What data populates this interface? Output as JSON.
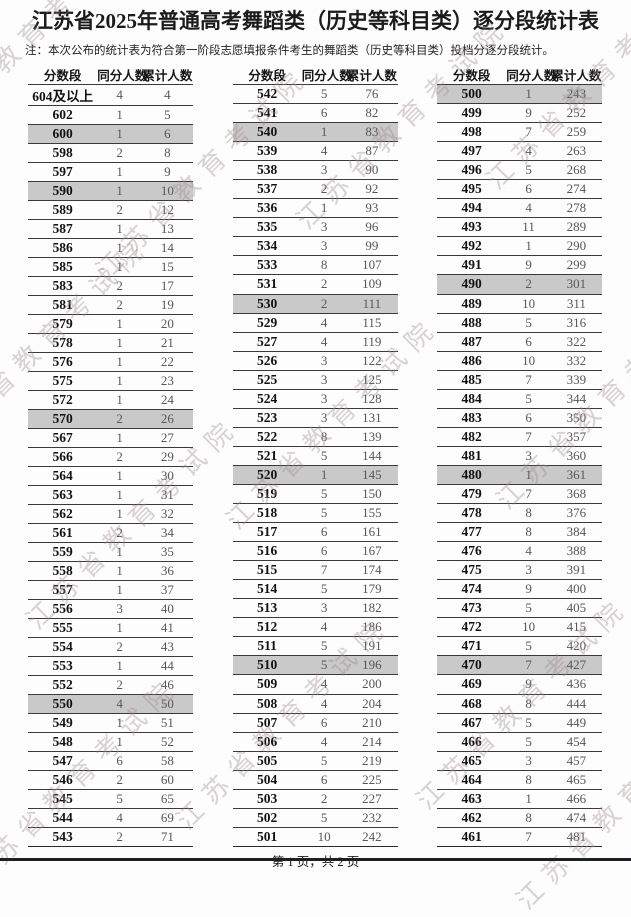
{
  "title": "江苏省2025年普通高考舞蹈类（历史等科目类）逐分段统计表",
  "note": "注：本次公布的统计表为符合第一阶段志愿填报条件考生的舞蹈类（历史等科目类）投档分逐分段统计。",
  "footer": "第 1 页，共 2 页",
  "watermark": {
    "text": "江苏省教育考试院",
    "color": "#9e8a8a"
  },
  "shaded_row_color": "#c9c9c9",
  "columns": [
    "分数段",
    "同分人数",
    "累计人数"
  ],
  "row_format": [
    "score",
    "same_score_count",
    "cumulative_count",
    "shaded"
  ],
  "tables": [
    {
      "rows": [
        [
          "604及以上",
          4,
          4,
          0
        ],
        [
          "602",
          1,
          5,
          0
        ],
        [
          "600",
          1,
          6,
          1
        ],
        [
          "598",
          2,
          8,
          0
        ],
        [
          "597",
          1,
          9,
          0
        ],
        [
          "590",
          1,
          10,
          1
        ],
        [
          "589",
          2,
          12,
          0
        ],
        [
          "587",
          1,
          13,
          0
        ],
        [
          "586",
          1,
          14,
          0
        ],
        [
          "585",
          1,
          15,
          0
        ],
        [
          "583",
          2,
          17,
          0
        ],
        [
          "581",
          2,
          19,
          0
        ],
        [
          "579",
          1,
          20,
          0
        ],
        [
          "578",
          1,
          21,
          0
        ],
        [
          "576",
          1,
          22,
          0
        ],
        [
          "575",
          1,
          23,
          0
        ],
        [
          "572",
          1,
          24,
          0
        ],
        [
          "570",
          2,
          26,
          1
        ],
        [
          "567",
          1,
          27,
          0
        ],
        [
          "566",
          2,
          29,
          0
        ],
        [
          "564",
          1,
          30,
          0
        ],
        [
          "563",
          1,
          31,
          0
        ],
        [
          "562",
          1,
          32,
          0
        ],
        [
          "561",
          2,
          34,
          0
        ],
        [
          "559",
          1,
          35,
          0
        ],
        [
          "558",
          1,
          36,
          0
        ],
        [
          "557",
          1,
          37,
          0
        ],
        [
          "556",
          3,
          40,
          0
        ],
        [
          "555",
          1,
          41,
          0
        ],
        [
          "554",
          2,
          43,
          0
        ],
        [
          "553",
          1,
          44,
          0
        ],
        [
          "552",
          2,
          46,
          0
        ],
        [
          "550",
          4,
          50,
          1
        ],
        [
          "549",
          1,
          51,
          0
        ],
        [
          "548",
          1,
          52,
          0
        ],
        [
          "547",
          6,
          58,
          0
        ],
        [
          "546",
          2,
          60,
          0
        ],
        [
          "545",
          5,
          65,
          0
        ],
        [
          "544",
          4,
          69,
          0
        ],
        [
          "543",
          2,
          71,
          0
        ]
      ]
    },
    {
      "rows": [
        [
          "542",
          5,
          76,
          0
        ],
        [
          "541",
          6,
          82,
          0
        ],
        [
          "540",
          1,
          83,
          1
        ],
        [
          "539",
          4,
          87,
          0
        ],
        [
          "538",
          3,
          90,
          0
        ],
        [
          "537",
          2,
          92,
          0
        ],
        [
          "536",
          1,
          93,
          0
        ],
        [
          "535",
          3,
          96,
          0
        ],
        [
          "534",
          3,
          99,
          0
        ],
        [
          "533",
          8,
          107,
          0
        ],
        [
          "531",
          2,
          109,
          0
        ],
        [
          "530",
          2,
          111,
          1
        ],
        [
          "529",
          4,
          115,
          0
        ],
        [
          "527",
          4,
          119,
          0
        ],
        [
          "526",
          3,
          122,
          0
        ],
        [
          "525",
          3,
          125,
          0
        ],
        [
          "524",
          3,
          128,
          0
        ],
        [
          "523",
          3,
          131,
          0
        ],
        [
          "522",
          8,
          139,
          0
        ],
        [
          "521",
          5,
          144,
          0
        ],
        [
          "520",
          1,
          145,
          1
        ],
        [
          "519",
          5,
          150,
          0
        ],
        [
          "518",
          5,
          155,
          0
        ],
        [
          "517",
          6,
          161,
          0
        ],
        [
          "516",
          6,
          167,
          0
        ],
        [
          "515",
          7,
          174,
          0
        ],
        [
          "514",
          5,
          179,
          0
        ],
        [
          "513",
          3,
          182,
          0
        ],
        [
          "512",
          4,
          186,
          0
        ],
        [
          "511",
          5,
          191,
          0
        ],
        [
          "510",
          5,
          196,
          1
        ],
        [
          "509",
          4,
          200,
          0
        ],
        [
          "508",
          4,
          204,
          0
        ],
        [
          "507",
          6,
          210,
          0
        ],
        [
          "506",
          4,
          214,
          0
        ],
        [
          "505",
          5,
          219,
          0
        ],
        [
          "504",
          6,
          225,
          0
        ],
        [
          "503",
          2,
          227,
          0
        ],
        [
          "502",
          5,
          232,
          0
        ],
        [
          "501",
          10,
          242,
          0
        ]
      ]
    },
    {
      "rows": [
        [
          "500",
          1,
          243,
          1
        ],
        [
          "499",
          9,
          252,
          0
        ],
        [
          "498",
          7,
          259,
          0
        ],
        [
          "497",
          4,
          263,
          0
        ],
        [
          "496",
          5,
          268,
          0
        ],
        [
          "495",
          6,
          274,
          0
        ],
        [
          "494",
          4,
          278,
          0
        ],
        [
          "493",
          11,
          289,
          0
        ],
        [
          "492",
          1,
          290,
          0
        ],
        [
          "491",
          9,
          299,
          0
        ],
        [
          "490",
          2,
          301,
          1
        ],
        [
          "489",
          10,
          311,
          0
        ],
        [
          "488",
          5,
          316,
          0
        ],
        [
          "487",
          6,
          322,
          0
        ],
        [
          "486",
          10,
          332,
          0
        ],
        [
          "485",
          7,
          339,
          0
        ],
        [
          "484",
          5,
          344,
          0
        ],
        [
          "483",
          6,
          350,
          0
        ],
        [
          "482",
          7,
          357,
          0
        ],
        [
          "481",
          3,
          360,
          0
        ],
        [
          "480",
          1,
          361,
          1
        ],
        [
          "479",
          7,
          368,
          0
        ],
        [
          "478",
          8,
          376,
          0
        ],
        [
          "477",
          8,
          384,
          0
        ],
        [
          "476",
          4,
          388,
          0
        ],
        [
          "475",
          3,
          391,
          0
        ],
        [
          "474",
          9,
          400,
          0
        ],
        [
          "473",
          5,
          405,
          0
        ],
        [
          "472",
          10,
          415,
          0
        ],
        [
          "471",
          5,
          420,
          0
        ],
        [
          "470",
          7,
          427,
          1
        ],
        [
          "469",
          9,
          436,
          0
        ],
        [
          "468",
          8,
          444,
          0
        ],
        [
          "467",
          5,
          449,
          0
        ],
        [
          "466",
          5,
          454,
          0
        ],
        [
          "465",
          3,
          457,
          0
        ],
        [
          "464",
          8,
          465,
          0
        ],
        [
          "463",
          1,
          466,
          0
        ],
        [
          "462",
          8,
          474,
          0
        ],
        [
          "461",
          7,
          481,
          0
        ]
      ]
    }
  ]
}
